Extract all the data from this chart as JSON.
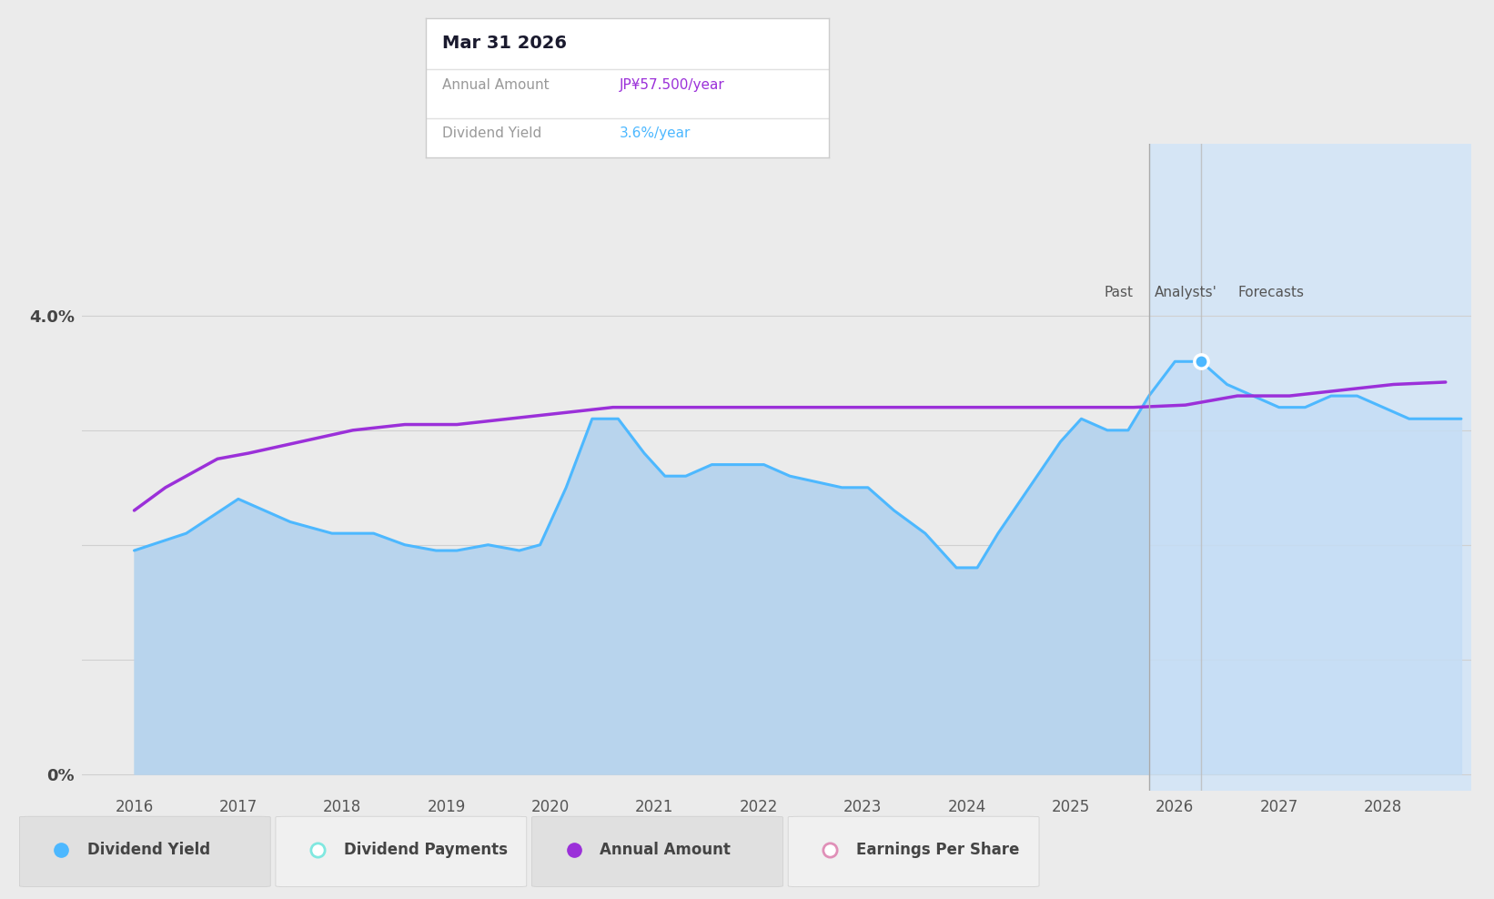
{
  "bg_color": "#ebebeb",
  "plot_bg_color": "#ebebeb",
  "x_min": 2015.5,
  "x_max": 2028.85,
  "y_min": -0.15,
  "y_max": 5.5,
  "past_end": 2025.75,
  "highlight_x": 2026.25,
  "tooltip_title": "Mar 31 2026",
  "tooltip_annual_label": "Annual Amount",
  "tooltip_annual_value": "JP¥57.500/year",
  "tooltip_yield_label": "Dividend Yield",
  "tooltip_yield_value": "3.6%/year",
  "annual_amount_color": "#9b30d9",
  "dividend_yield_color": "#4db8ff",
  "yield_fill_color_past": "#b8d4ed",
  "yield_fill_color_forecast": "#c5ddf5",
  "forecast_bg_color": "#d5e5f5",
  "past_bg_color": "#ebebeb",
  "dividend_yield_data_x": [
    2016.0,
    2016.5,
    2017.0,
    2017.5,
    2017.9,
    2018.3,
    2018.6,
    2018.9,
    2019.1,
    2019.4,
    2019.7,
    2019.9,
    2020.15,
    2020.4,
    2020.65,
    2020.9,
    2021.1,
    2021.3,
    2021.55,
    2021.8,
    2022.05,
    2022.3,
    2022.55,
    2022.8,
    2023.05,
    2023.3,
    2023.6,
    2023.9,
    2024.1,
    2024.3,
    2024.6,
    2024.9,
    2025.1,
    2025.35,
    2025.55,
    2025.75,
    2026.0,
    2026.25,
    2026.5,
    2026.75,
    2027.0,
    2027.25,
    2027.5,
    2027.75,
    2028.0,
    2028.25,
    2028.5,
    2028.75
  ],
  "dividend_yield_data_y": [
    1.95,
    2.1,
    2.4,
    2.2,
    2.1,
    2.1,
    2.0,
    1.95,
    1.95,
    2.0,
    1.95,
    2.0,
    2.5,
    3.1,
    3.1,
    2.8,
    2.6,
    2.6,
    2.7,
    2.7,
    2.7,
    2.6,
    2.55,
    2.5,
    2.5,
    2.3,
    2.1,
    1.8,
    1.8,
    2.1,
    2.5,
    2.9,
    3.1,
    3.0,
    3.0,
    3.3,
    3.6,
    3.6,
    3.4,
    3.3,
    3.2,
    3.2,
    3.3,
    3.3,
    3.2,
    3.1,
    3.1,
    3.1
  ],
  "annual_amount_data_x": [
    2016.0,
    2016.3,
    2016.8,
    2017.1,
    2017.6,
    2018.1,
    2018.6,
    2019.1,
    2019.6,
    2020.1,
    2020.6,
    2021.1,
    2021.6,
    2022.1,
    2022.6,
    2023.1,
    2023.6,
    2024.1,
    2024.6,
    2025.1,
    2025.6,
    2026.1,
    2026.6,
    2027.1,
    2027.6,
    2028.1,
    2028.6
  ],
  "annual_amount_data_y": [
    2.3,
    2.5,
    2.75,
    2.8,
    2.9,
    3.0,
    3.05,
    3.05,
    3.1,
    3.15,
    3.2,
    3.2,
    3.2,
    3.2,
    3.2,
    3.2,
    3.2,
    3.2,
    3.2,
    3.2,
    3.2,
    3.22,
    3.3,
    3.3,
    3.35,
    3.4,
    3.42
  ],
  "x_ticks": [
    2016,
    2017,
    2018,
    2019,
    2020,
    2021,
    2022,
    2023,
    2024,
    2025,
    2026,
    2027,
    2028
  ],
  "y_tick_0_label": "0%",
  "y_tick_4_label": "4.0%",
  "y_tick_0_val": 0.0,
  "y_tick_4_val": 4.0,
  "past_label": "Past",
  "analysts_label": "Analysts'",
  "forecasts_label": "Forecasts",
  "grid_color": "#d0d0d0",
  "separator_color": "#aaaaaa",
  "legend_items": [
    {
      "label": "Dividend Yield",
      "color": "#4db8ff",
      "filled": true
    },
    {
      "label": "Dividend Payments",
      "color": "#80e8e0",
      "filled": false
    },
    {
      "label": "Annual Amount",
      "color": "#9b30d9",
      "filled": true
    },
    {
      "label": "Earnings Per Share",
      "color": "#e090b8",
      "filled": false
    }
  ]
}
